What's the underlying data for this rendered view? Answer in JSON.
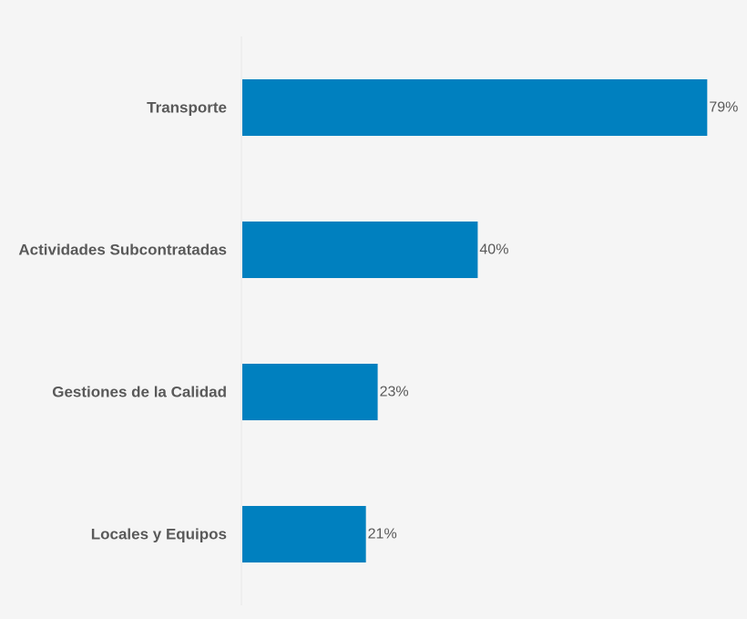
{
  "chart_data": {
    "type": "bar",
    "orientation": "horizontal",
    "categories": [
      "Transporte",
      "Actividades Subcontratadas",
      "Gestiones de la Calidad",
      "Locales y Equipos"
    ],
    "values": [
      79,
      40,
      23,
      21
    ],
    "value_labels": [
      "79%",
      "40%",
      "23%",
      "21%"
    ],
    "unit": "%",
    "xlim": [
      0,
      100
    ],
    "bar_color": "#0080bf",
    "text_color": "#595959",
    "axis_color": "#e6e6e6",
    "background_color": "#f5f5f5",
    "grid": false,
    "legend": "none"
  }
}
